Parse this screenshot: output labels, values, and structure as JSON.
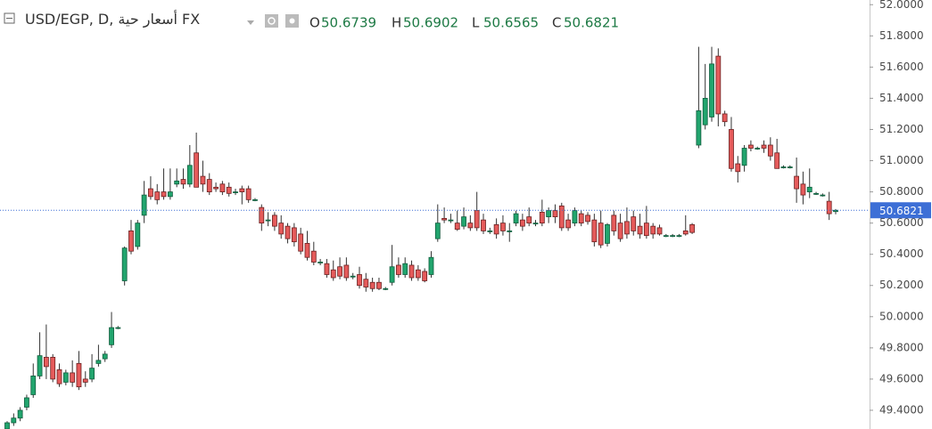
{
  "chart_data": {
    "type": "candlestick",
    "title": "USD/EGP, D, أسعار حية FX",
    "ohlc_labels": [
      "O",
      "H",
      "L",
      "C"
    ],
    "up_color": "#22a56e",
    "down_color": "#e55b5b",
    "ylim": [
      49.28,
      52.03
    ],
    "yticks": [
      {
        "value": 49.4,
        "label": "49.4000"
      },
      {
        "value": 49.6,
        "label": "49.6000"
      },
      {
        "value": 49.8,
        "label": "49.8000"
      },
      {
        "value": 50.0,
        "label": "50.0000"
      },
      {
        "value": 50.2,
        "label": "50.2000"
      },
      {
        "value": 50.4,
        "label": "50.4000"
      },
      {
        "value": 50.6,
        "label": "50.6000"
      },
      {
        "value": 50.8,
        "label": "50.8000"
      },
      {
        "value": 51.0,
        "label": "51.0000"
      },
      {
        "value": 51.2,
        "label": "51.2000"
      },
      {
        "value": 51.4,
        "label": "51.4000"
      },
      {
        "value": 51.6,
        "label": "51.6000"
      },
      {
        "value": 51.8,
        "label": "51.8000"
      },
      {
        "value": 52.0,
        "label": "52.0000"
      }
    ],
    "open": [
      49.28,
      49.32,
      49.35,
      49.42,
      49.5,
      49.62,
      49.74,
      49.74,
      49.66,
      49.58,
      49.64,
      49.7,
      49.6,
      49.6,
      49.7,
      49.73,
      49.82,
      49.93,
      50.23,
      50.55,
      50.45,
      50.65,
      50.82,
      50.8,
      50.8,
      50.77,
      50.85,
      50.88,
      50.85,
      51.05,
      50.9,
      50.88,
      50.83,
      50.85,
      50.83,
      50.8,
      50.82,
      50.82,
      50.75,
      50.7,
      50.62,
      50.65,
      50.6,
      50.58,
      50.57,
      50.53,
      50.47,
      50.42,
      50.35,
      50.34,
      50.3,
      50.32,
      50.33,
      50.26,
      50.27,
      50.24,
      50.22,
      50.22,
      50.18,
      50.22,
      50.33,
      50.27,
      50.33,
      50.3,
      50.29,
      50.27,
      50.5,
      50.63,
      50.62,
      50.6,
      50.58,
      50.6,
      50.68,
      50.62,
      50.55,
      50.59,
      50.6,
      50.55,
      50.6,
      50.62,
      50.64,
      50.6,
      50.67,
      50.64,
      50.68,
      50.71,
      50.62,
      50.6,
      50.66,
      50.65,
      50.62,
      50.6,
      50.47,
      50.65,
      50.6,
      50.61,
      50.64,
      50.58,
      50.6,
      50.58,
      50.57,
      50.52,
      50.52,
      50.52,
      50.55,
      50.59,
      51.1,
      51.23,
      51.28,
      51.67,
      51.3,
      51.2,
      50.98,
      50.97,
      51.1,
      51.08,
      51.1,
      51.1,
      51.05,
      50.96,
      50.96,
      50.9,
      50.85,
      50.8,
      50.79,
      50.78,
      50.74,
      50.6739
    ],
    "high": [
      49.33,
      49.38,
      49.42,
      49.5,
      49.7,
      49.9,
      49.95,
      49.76,
      49.7,
      49.66,
      49.72,
      49.78,
      49.65,
      49.76,
      49.82,
      49.78,
      50.03,
      49.94,
      50.45,
      50.62,
      50.62,
      50.87,
      50.9,
      50.85,
      50.95,
      50.95,
      50.95,
      50.95,
      51.1,
      51.18,
      51.0,
      50.92,
      50.86,
      50.87,
      50.86,
      50.82,
      50.84,
      50.84,
      50.76,
      50.72,
      50.67,
      50.67,
      50.65,
      50.6,
      50.6,
      50.57,
      50.55,
      50.48,
      50.37,
      50.37,
      50.36,
      50.38,
      50.38,
      50.28,
      50.32,
      50.28,
      50.25,
      50.25,
      50.19,
      50.46,
      50.38,
      50.38,
      50.36,
      50.33,
      50.31,
      50.42,
      50.72,
      50.7,
      50.66,
      50.68,
      50.7,
      50.65,
      50.8,
      50.66,
      50.57,
      50.63,
      50.65,
      50.6,
      50.68,
      50.66,
      50.7,
      50.62,
      50.75,
      50.7,
      50.72,
      50.73,
      50.66,
      50.7,
      50.68,
      50.67,
      50.66,
      50.68,
      50.6,
      50.68,
      50.66,
      50.7,
      50.68,
      50.66,
      50.71,
      50.6,
      50.59,
      50.53,
      50.53,
      50.53,
      50.65,
      50.6,
      51.73,
      51.62,
      51.73,
      51.72,
      51.32,
      51.28,
      51.03,
      51.1,
      51.13,
      51.09,
      51.13,
      51.15,
      51.14,
      50.97,
      50.97,
      51.02,
      50.93,
      50.95,
      50.8,
      50.79,
      50.8,
      50.6902
    ],
    "low": [
      49.26,
      49.3,
      49.33,
      49.4,
      49.48,
      49.6,
      49.6,
      49.58,
      49.55,
      49.56,
      49.55,
      49.53,
      49.55,
      49.58,
      49.68,
      49.71,
      49.8,
      49.92,
      50.2,
      50.4,
      50.43,
      50.6,
      50.75,
      50.72,
      50.75,
      50.75,
      50.83,
      50.82,
      50.83,
      50.83,
      50.8,
      50.78,
      50.8,
      50.78,
      50.77,
      50.78,
      50.72,
      50.73,
      50.74,
      50.55,
      50.58,
      50.55,
      50.5,
      50.47,
      50.45,
      50.4,
      50.36,
      50.33,
      50.33,
      50.25,
      50.23,
      50.24,
      50.23,
      50.24,
      50.18,
      50.16,
      50.16,
      50.17,
      50.17,
      50.2,
      50.25,
      50.25,
      50.23,
      50.23,
      50.22,
      50.25,
      50.48,
      50.6,
      50.6,
      50.55,
      50.56,
      50.55,
      50.55,
      50.53,
      50.53,
      50.5,
      50.52,
      50.48,
      50.58,
      50.55,
      50.58,
      50.58,
      50.58,
      50.6,
      50.6,
      50.55,
      50.55,
      50.58,
      50.58,
      50.59,
      50.45,
      50.44,
      50.45,
      50.52,
      50.48,
      50.5,
      50.52,
      50.5,
      50.5,
      50.5,
      50.52,
      50.51,
      50.51,
      50.51,
      50.52,
      50.53,
      51.08,
      51.2,
      51.25,
      51.22,
      51.22,
      50.93,
      50.86,
      50.93,
      51.06,
      51.07,
      51.05,
      51.0,
      50.95,
      50.95,
      50.95,
      50.73,
      50.72,
      50.76,
      50.78,
      50.77,
      50.62,
      50.6565
    ],
    "close": [
      49.32,
      49.35,
      49.4,
      49.48,
      49.62,
      49.75,
      49.68,
      49.6,
      49.57,
      49.64,
      49.58,
      49.55,
      49.58,
      49.67,
      49.72,
      49.76,
      49.93,
      49.93,
      50.44,
      50.42,
      50.6,
      50.78,
      50.77,
      50.75,
      50.77,
      50.8,
      50.87,
      50.85,
      50.97,
      50.83,
      50.85,
      50.8,
      50.82,
      50.8,
      50.79,
      50.8,
      50.8,
      50.75,
      50.75,
      50.6,
      50.62,
      50.58,
      50.53,
      50.5,
      50.48,
      50.42,
      50.38,
      50.35,
      50.35,
      50.27,
      50.25,
      50.26,
      50.25,
      50.26,
      50.2,
      50.19,
      50.18,
      50.18,
      50.18,
      50.32,
      50.27,
      50.34,
      50.25,
      50.25,
      50.23,
      50.38,
      50.6,
      50.62,
      50.62,
      50.56,
      50.64,
      50.57,
      50.57,
      50.55,
      50.55,
      50.53,
      50.55,
      50.55,
      50.66,
      50.58,
      50.6,
      50.6,
      50.6,
      50.68,
      50.64,
      50.57,
      50.57,
      50.68,
      50.6,
      50.61,
      50.48,
      50.46,
      50.59,
      50.55,
      50.5,
      50.53,
      50.55,
      50.53,
      50.52,
      50.53,
      50.53,
      50.52,
      50.52,
      50.52,
      50.53,
      50.54,
      51.32,
      51.4,
      51.62,
      51.3,
      51.25,
      50.95,
      50.93,
      51.08,
      51.08,
      51.08,
      51.08,
      51.03,
      50.95,
      50.96,
      50.96,
      50.82,
      50.78,
      50.83,
      50.79,
      50.78,
      50.66,
      50.6821
    ]
  }
}
